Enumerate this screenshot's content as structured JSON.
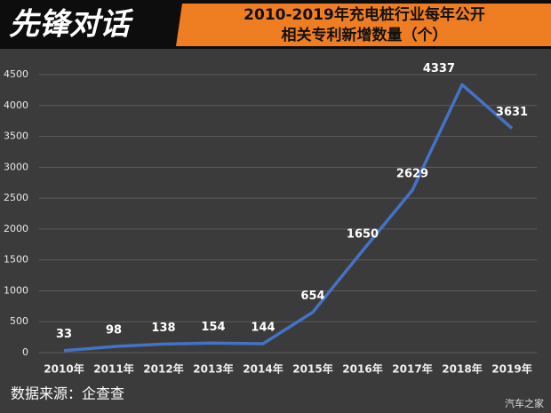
{
  "brand": "先锋对话",
  "source": "数据来源：企查查",
  "watermark": "汽车之家",
  "chart_data": {
    "type": "line",
    "title": [
      "2010-2019年充电桩行业每年公开",
      "相关专利新增数量（个）"
    ],
    "categories": [
      "2010年",
      "2011年",
      "2012年",
      "2013年",
      "2014年",
      "2015年",
      "2016年",
      "2017年",
      "2018年",
      "2019年"
    ],
    "values": [
      33,
      98,
      138,
      154,
      144,
      654,
      1650,
      2629,
      4337,
      3631
    ],
    "color": "#4472c4",
    "ylim": [
      0,
      4500
    ],
    "yticks": [
      0,
      500,
      1000,
      1500,
      2000,
      2500,
      3000,
      3500,
      4000,
      4500
    ],
    "grid": true
  }
}
